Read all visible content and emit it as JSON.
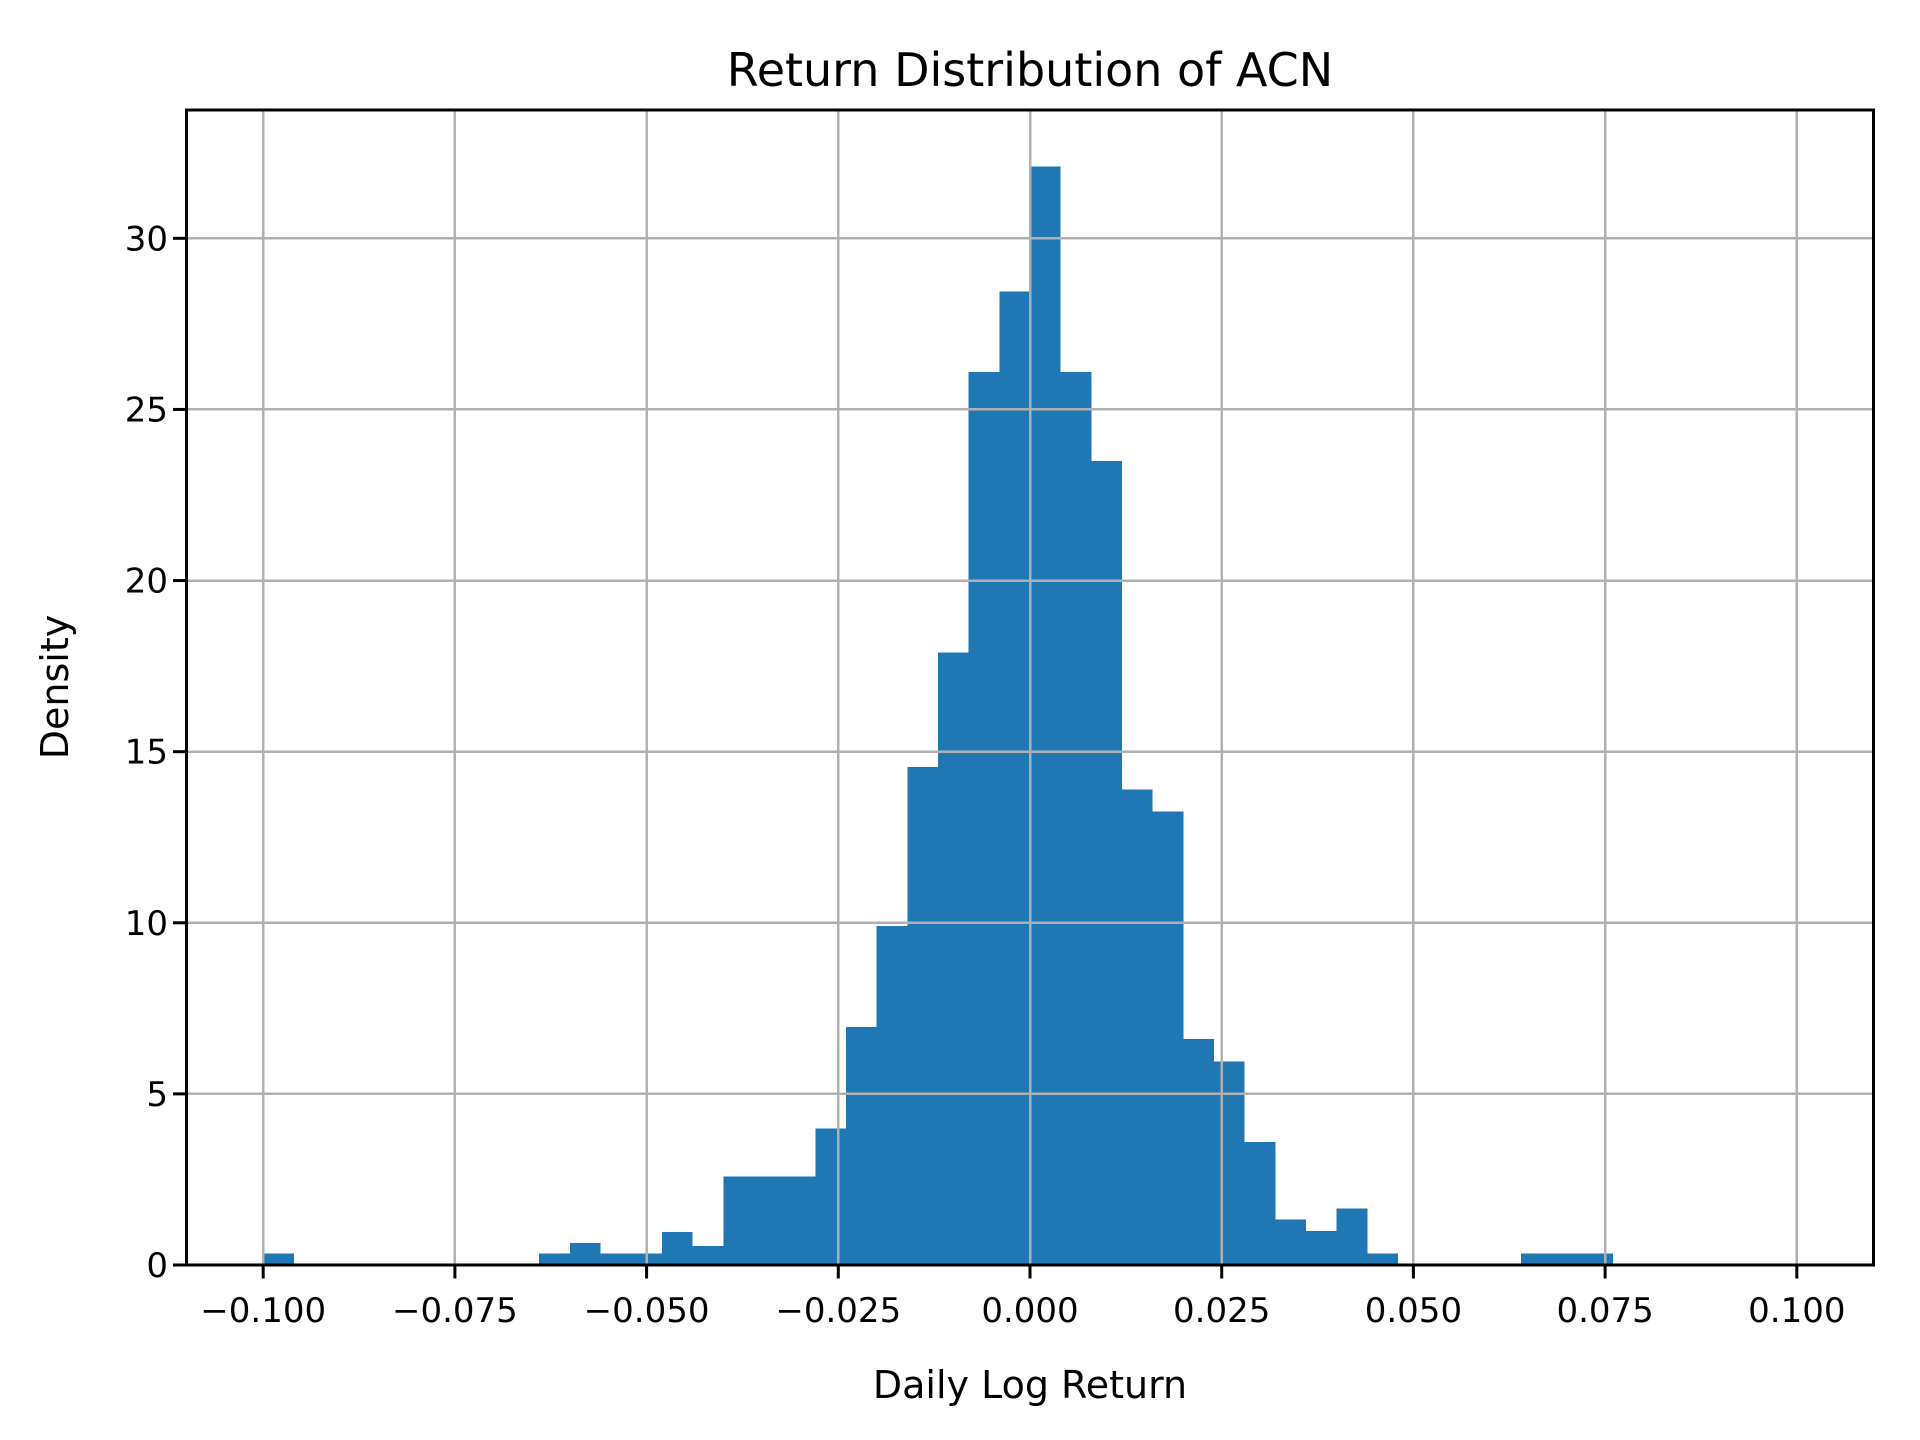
{
  "chart_data": {
    "type": "histogram",
    "title": "Return Distribution of ACN",
    "xlabel": "Daily Log Return",
    "ylabel": "Density",
    "bar_color": "#1f77b4",
    "grid_color": "#b0b0b0",
    "grid": true,
    "legend_position": "none",
    "bins": {
      "start": -0.1,
      "width": 0.004
    },
    "densities": [
      0.34,
      0,
      0,
      0,
      0,
      0,
      0,
      0,
      0,
      0.34,
      0.65,
      0.34,
      0.34,
      0.97,
      0.55,
      2.59,
      2.59,
      2.59,
      3.99,
      6.95,
      9.9,
      14.55,
      17.9,
      26.1,
      28.45,
      32.1,
      26.1,
      23.5,
      13.9,
      13.25,
      6.6,
      5.95,
      3.6,
      1.33,
      0.99,
      1.65,
      0.34,
      0,
      0,
      0,
      0,
      0.34,
      0.34,
      0.34
    ],
    "xlim": [
      -0.11,
      0.11
    ],
    "ylim": [
      0,
      33.75
    ],
    "xticks": [
      -0.1,
      -0.075,
      -0.05,
      -0.025,
      0.0,
      0.025,
      0.05,
      0.075,
      0.1
    ],
    "xtick_labels": [
      "−0.100",
      "−0.075",
      "−0.050",
      "−0.025",
      "0.000",
      "0.025",
      "0.050",
      "0.075",
      "0.100"
    ],
    "yticks": [
      0,
      5,
      10,
      15,
      20,
      25,
      30
    ],
    "ytick_labels": [
      "0",
      "5",
      "10",
      "15",
      "20",
      "25",
      "30"
    ]
  }
}
